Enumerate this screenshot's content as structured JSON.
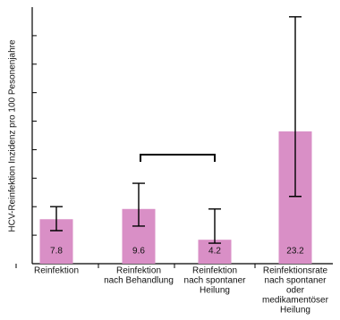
{
  "chart_data": {
    "type": "bar",
    "y_label": "HCV-Reinfektion Inzidenz pro 100 Pesonenjahre",
    "categories": [
      [
        "Reinfektion"
      ],
      [
        "Reinfektion",
        "nach Behandlung"
      ],
      [
        "Reinfektion",
        "nach spontaner",
        "Heilung"
      ],
      [
        "Reinfektionsrate",
        "nach spontaner",
        "oder",
        "medikamentöser",
        "Heilung"
      ]
    ],
    "values": [
      7.8,
      9.6,
      4.2,
      23.2
    ],
    "error_low": [
      5.8,
      6.6,
      3.6,
      11.8
    ],
    "error_high": [
      10.0,
      14.1,
      9.6,
      43.3
    ],
    "color": "#d98fc6",
    "ylim": [
      0,
      45
    ],
    "yticks": [
      5,
      10,
      15,
      20,
      25,
      30,
      35,
      40
    ]
  }
}
